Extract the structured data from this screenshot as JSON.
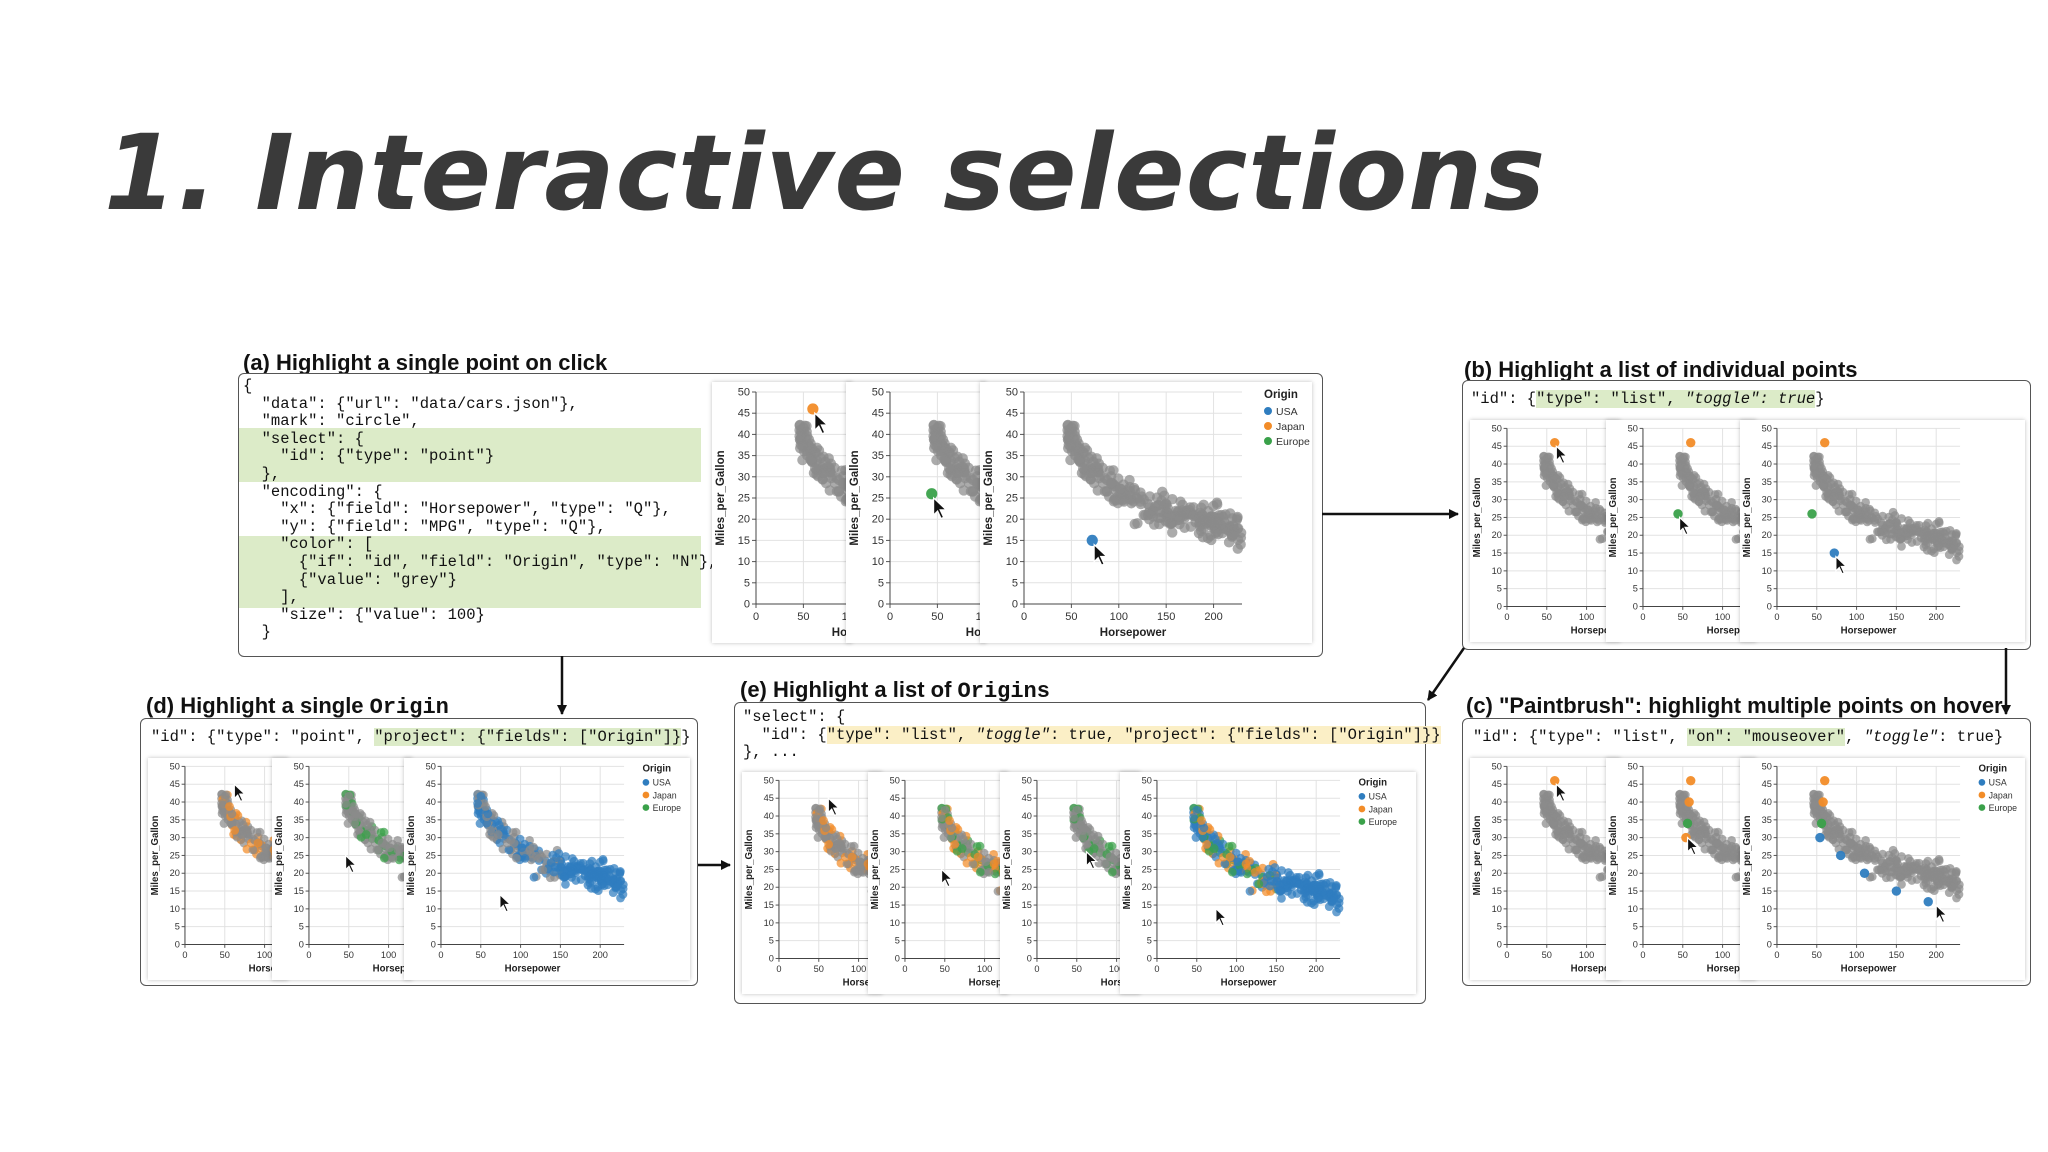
{
  "title": "1.  Interactive selections",
  "colors": {
    "usa": "#2f7dbf",
    "japan": "#f28c28",
    "europe": "#3aa14a",
    "grey": "#8a8a8a"
  },
  "chart_common": {
    "xlabel": "Horsepower",
    "ylabel": "Miles_per_Gallon",
    "x_ticks": [
      "0",
      "50",
      "100",
      "150",
      "200"
    ],
    "y_ticks": [
      "0",
      "5",
      "10",
      "15",
      "20",
      "25",
      "30",
      "35",
      "40",
      "45",
      "50"
    ],
    "legend_title": "Origin",
    "legend": [
      "USA",
      "Japan",
      "Europe"
    ]
  },
  "panel_a": {
    "label": "(a) Highlight a single point on click",
    "code": [
      "{",
      "  \"data\": {\"url\": \"data/cars.json\"},",
      "  \"mark\": \"circle\",",
      "  \"select\": {",
      "    \"id\": {\"type\": \"point\"}",
      "  },",
      "  \"encoding\": {",
      "    \"x\": {\"field\": \"Horsepower\", \"type\": \"Q\"},",
      "    \"y\": {\"field\": \"MPG\", \"type\": \"Q\"},",
      "    \"color\": [",
      "      {\"if\": \"id\", \"field\": \"Origin\", \"type\": \"N\"},",
      "      {\"value\": \"grey\"}",
      "    ],",
      "    \"size\": {\"value\": 100}",
      "  }"
    ]
  },
  "panel_b": {
    "label": "(b) Highlight a list of individual points",
    "code_prefix": "\"id\": {",
    "code_hl": "\"type\": \"list\", ",
    "code_hl_it": "\"toggle\"",
    "code_hl_tail": ": true",
    "code_suffix": "}"
  },
  "panel_c": {
    "label": "(c) \"Paintbrush\": highlight multiple points on hover",
    "code_prefix": "\"id\": {\"type\": \"list\", ",
    "code_hl": "\"on\": \"mouseover\"",
    "code_mid": ", ",
    "code_it": "\"toggle\"",
    "code_suffix": ": true}"
  },
  "panel_d": {
    "label_prefix": "(d) Highlight a single ",
    "label_mono": "Origin",
    "code_prefix": "\"id\": {\"type\": \"point\", ",
    "code_hl": "\"project\": {\"fields\": [\"Origin\"]}",
    "code_suffix": "}"
  },
  "panel_e": {
    "label_prefix": "(e) Highlight a list of ",
    "label_mono": "Origins",
    "code_line1": "\"select\": {",
    "code_line2_prefix": "  \"id\": {",
    "code_line2_hl_a": "\"type\": \"list\", ",
    "code_line2_hl_it": "\"toggle\"",
    "code_line2_hl_b": ": true, \"project\": {\"fields\": [\"Origin\"]}}",
    "code_line3": "}, ..."
  }
}
